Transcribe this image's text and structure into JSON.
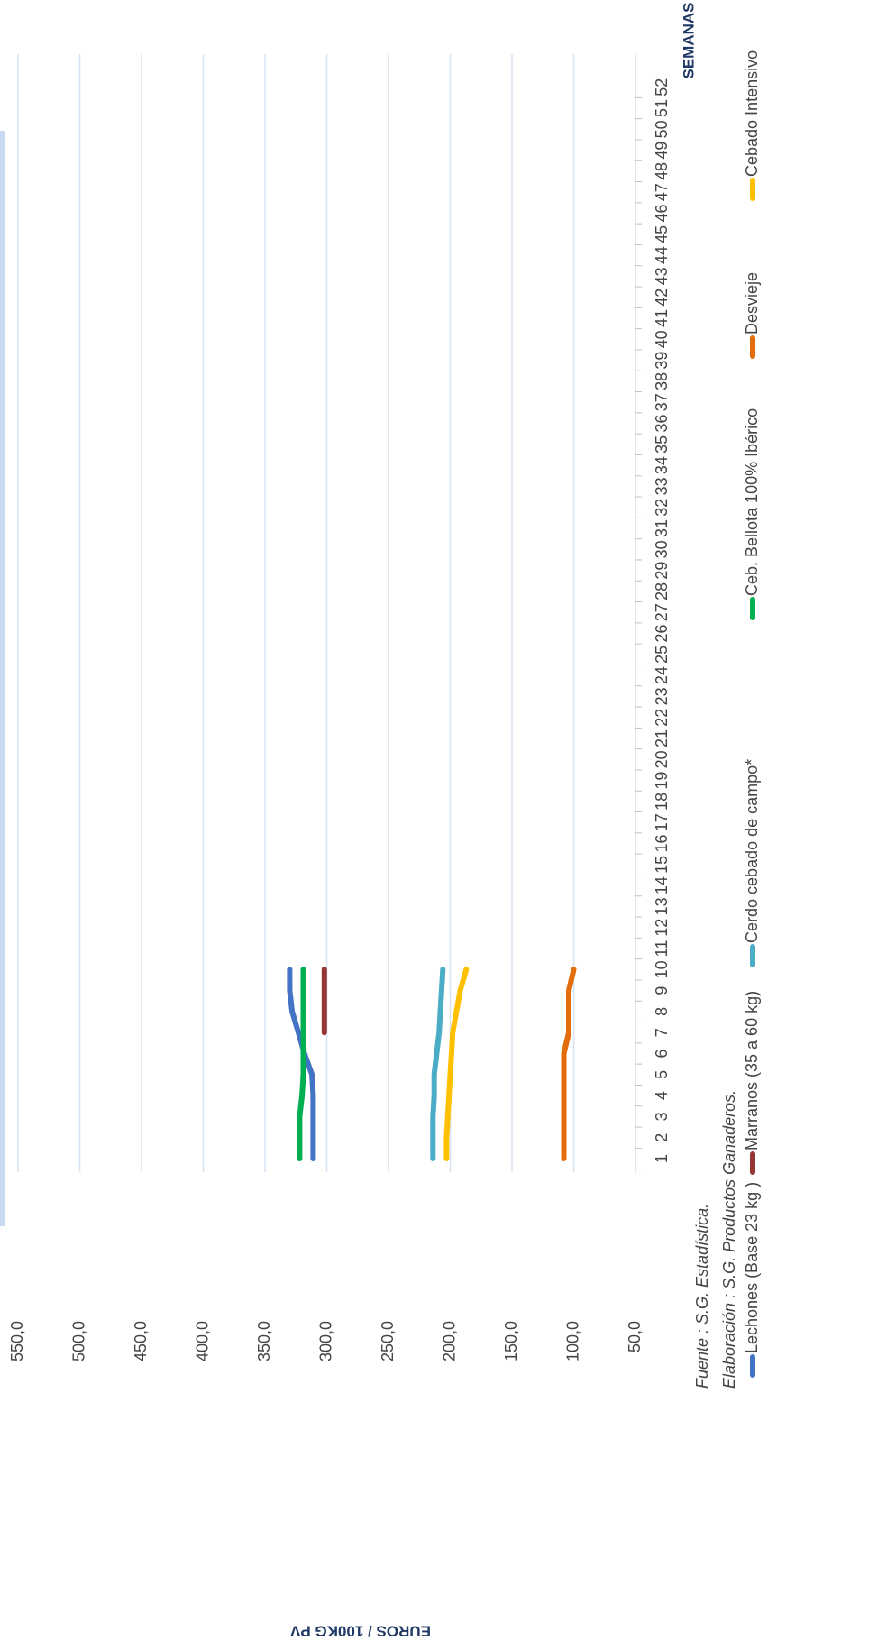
{
  "chart_data": {
    "type": "line",
    "ylabel": "EUROS / 100KG PV",
    "xlabel": "SEMANAS",
    "notes": [
      "Fuente : S.G. Estadística.",
      "Elaboración : S.G. Productos Ganaderos."
    ],
    "categories": [
      "1",
      "2",
      "3",
      "4",
      "5",
      "6",
      "7",
      "8",
      "9",
      "10",
      "11",
      "12",
      "13",
      "14",
      "15",
      "16",
      "17",
      "18",
      "19",
      "20",
      "21",
      "22",
      "23",
      "24",
      "25",
      "26",
      "27",
      "28",
      "29",
      "30",
      "31",
      "32",
      "33",
      "34",
      "35",
      "36",
      "37",
      "38",
      "39",
      "40",
      "41",
      "42",
      "43",
      "44",
      "45",
      "46",
      "47",
      "48",
      "49",
      "50",
      "51",
      "52"
    ],
    "ylim": [
      50,
      550
    ],
    "yticks": [
      {
        "value": 550,
        "label": "550,0"
      },
      {
        "value": 500,
        "label": "500,0"
      },
      {
        "value": 450,
        "label": "450,0"
      },
      {
        "value": 400,
        "label": "400,0"
      },
      {
        "value": 350,
        "label": "350,0"
      },
      {
        "value": 300,
        "label": "300,0"
      },
      {
        "value": 250,
        "label": "250,0"
      },
      {
        "value": 200,
        "label": "200,0"
      },
      {
        "value": 150,
        "label": "150,0"
      },
      {
        "value": 100,
        "label": "100,0"
      },
      {
        "value": 50,
        "label": "50,0"
      }
    ],
    "grid": true,
    "legend": "bottom",
    "series": [
      {
        "name": "Lechones (Base 23 kg )",
        "color": "#4472c4",
        "values": [
          311,
          311,
          311,
          311,
          312,
          318,
          323,
          328,
          330,
          330,
          null,
          null,
          null,
          null,
          null,
          null,
          null,
          null,
          null,
          null,
          null,
          null,
          null,
          null,
          null,
          null,
          null,
          null,
          null,
          null,
          null,
          null,
          null,
          null,
          null,
          null,
          null,
          null,
          null,
          null,
          null,
          null,
          null,
          null,
          null,
          null,
          null,
          null,
          null,
          null,
          null,
          null
        ]
      },
      {
        "name": "Marranos (35 a 60 kg)",
        "color": "#943634",
        "values": [
          null,
          null,
          null,
          null,
          null,
          null,
          302,
          302,
          302,
          302,
          null,
          null,
          null,
          null,
          null,
          null,
          null,
          null,
          null,
          null,
          null,
          null,
          null,
          null,
          null,
          null,
          null,
          null,
          null,
          null,
          null,
          null,
          null,
          null,
          null,
          null,
          null,
          null,
          null,
          null,
          null,
          null,
          null,
          null,
          null,
          null,
          null,
          null,
          null,
          null,
          null,
          null
        ]
      },
      {
        "name": "Cerdo cebado de campo*",
        "color": "#4bacc6",
        "values": [
          214,
          214,
          214,
          213,
          213,
          211,
          209,
          208,
          207,
          206,
          null,
          null,
          null,
          null,
          null,
          null,
          null,
          null,
          null,
          null,
          null,
          null,
          null,
          null,
          null,
          null,
          null,
          null,
          null,
          null,
          null,
          null,
          null,
          null,
          null,
          null,
          null,
          null,
          null,
          null,
          null,
          null,
          null,
          null,
          null,
          null,
          null,
          null,
          null,
          null,
          null,
          null
        ]
      },
      {
        "name": "Ceb. Bellota 100% Ibérico",
        "color": "#00b050",
        "values": [
          322,
          322,
          322,
          320,
          319,
          319,
          319,
          319,
          319,
          319,
          null,
          null,
          null,
          null,
          null,
          null,
          null,
          null,
          null,
          null,
          null,
          null,
          null,
          null,
          null,
          null,
          null,
          null,
          null,
          null,
          null,
          null,
          null,
          null,
          null,
          null,
          null,
          null,
          null,
          null,
          null,
          null,
          null,
          null,
          null,
          null,
          null,
          null,
          null,
          null,
          null,
          null
        ]
      },
      {
        "name": "Desvieje",
        "color": "#e46c0a",
        "values": [
          108,
          108,
          108,
          108,
          108,
          108,
          104,
          104,
          104,
          100,
          null,
          null,
          null,
          null,
          null,
          null,
          null,
          null,
          null,
          null,
          null,
          null,
          null,
          null,
          null,
          null,
          null,
          null,
          null,
          null,
          null,
          null,
          null,
          null,
          null,
          null,
          null,
          null,
          null,
          null,
          null,
          null,
          null,
          null,
          null,
          null,
          null,
          null,
          null,
          null,
          null,
          null
        ]
      },
      {
        "name": "Cebado Intensivo",
        "color": "#ffc000",
        "values": [
          203,
          203,
          202,
          201,
          200,
          199,
          198,
          195,
          192,
          187,
          null,
          null,
          null,
          null,
          null,
          null,
          null,
          null,
          null,
          null,
          null,
          null,
          null,
          null,
          null,
          null,
          null,
          null,
          null,
          null,
          null,
          null,
          null,
          null,
          null,
          null,
          null,
          null,
          null,
          null,
          null,
          null,
          null,
          null,
          null,
          null,
          null,
          null,
          null,
          null,
          null,
          null
        ]
      }
    ]
  }
}
